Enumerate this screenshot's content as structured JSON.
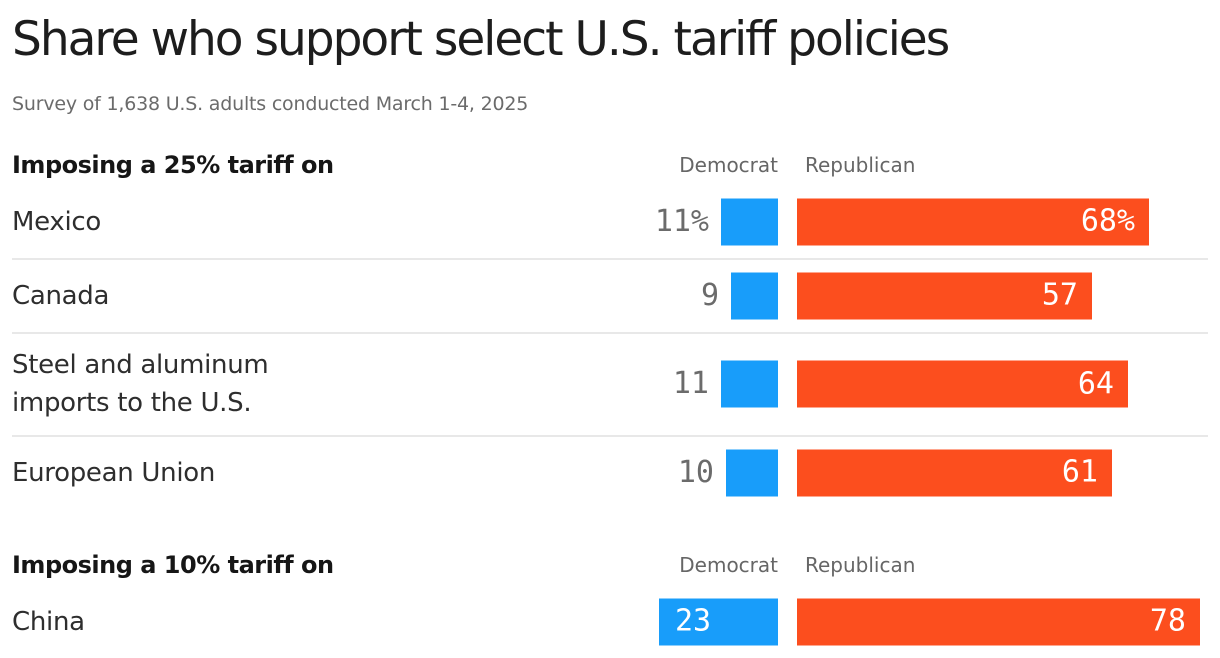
{
  "title": "Share who support select U.S. tariff policies",
  "subtitle": "Survey of 1,638 U.S. adults conducted March 1-4, 2025",
  "legend": {
    "democrat": "Democrat",
    "republican": "Republican"
  },
  "colors": {
    "democrat": "#189dfa",
    "republican": "#fc4e1e",
    "divider": "#e8e8e8",
    "title_text": "#1d1d1d",
    "muted_text": "#6b6b6b",
    "row_label_text": "#2e2e2e",
    "bar_value_text": "#ffffff"
  },
  "chart_data": {
    "type": "bar",
    "orientation": "horizontal",
    "title": "Share who support select U.S. tariff policies",
    "subtitle": "Survey of 1,638 U.S. adults conducted March 1-4, 2025",
    "unit": "percent of U.S. adults",
    "x_range": [
      0,
      100
    ],
    "grid": false,
    "legend_position": "column-headers",
    "series_names": [
      "Democrat",
      "Republican"
    ],
    "sections": [
      {
        "header": "Imposing a 25% tariff on",
        "rows": [
          {
            "label_lines": [
              "Mexico"
            ],
            "democrat": 11,
            "republican": 68,
            "democrat_label": "11%",
            "republican_label": "68%",
            "democrat_label_inside": false
          },
          {
            "label_lines": [
              "Canada"
            ],
            "democrat": 9,
            "republican": 57,
            "democrat_label": "9",
            "republican_label": "57",
            "democrat_label_inside": false
          },
          {
            "label_lines": [
              "Steel and aluminum",
              "imports to the U.S."
            ],
            "democrat": 11,
            "republican": 64,
            "democrat_label": "11",
            "republican_label": "64",
            "democrat_label_inside": false
          },
          {
            "label_lines": [
              "European Union"
            ],
            "democrat": 10,
            "republican": 61,
            "democrat_label": "10",
            "republican_label": "61",
            "democrat_label_inside": false
          }
        ]
      },
      {
        "header": "Imposing a 10% tariff on",
        "rows": [
          {
            "label_lines": [
              "China"
            ],
            "democrat": 23,
            "republican": 78,
            "democrat_label": "23",
            "republican_label": "78",
            "democrat_label_inside": true
          }
        ]
      }
    ]
  }
}
